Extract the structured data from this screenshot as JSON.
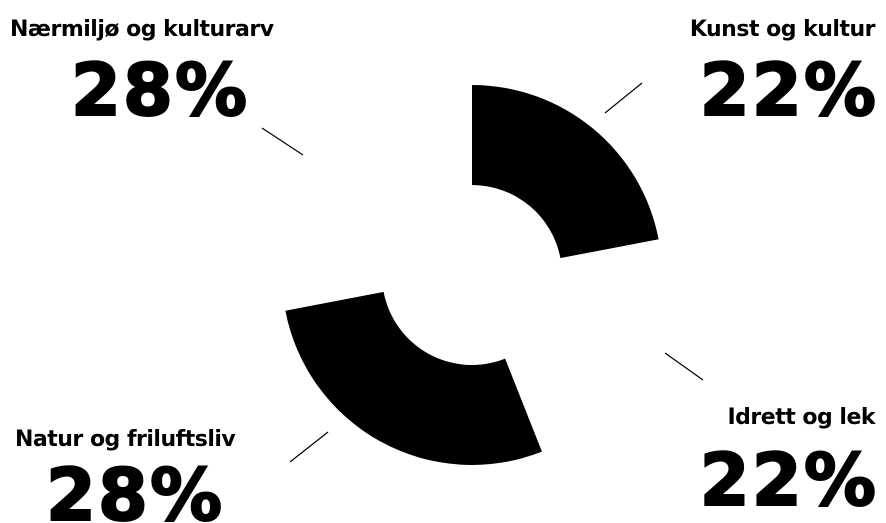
{
  "chart_data": {
    "type": "donut",
    "categories": [
      "Kunst og kultur",
      "Idrett og lek",
      "Natur og friluftsliv",
      "Nærmiljø og kulturarv"
    ],
    "values": [
      22,
      22,
      28,
      28
    ],
    "value_labels": [
      "22%",
      "22%",
      "28%",
      "28%"
    ],
    "colors": [
      "#000000",
      "#ffffff",
      "#000000",
      "#ffffff"
    ]
  }
}
